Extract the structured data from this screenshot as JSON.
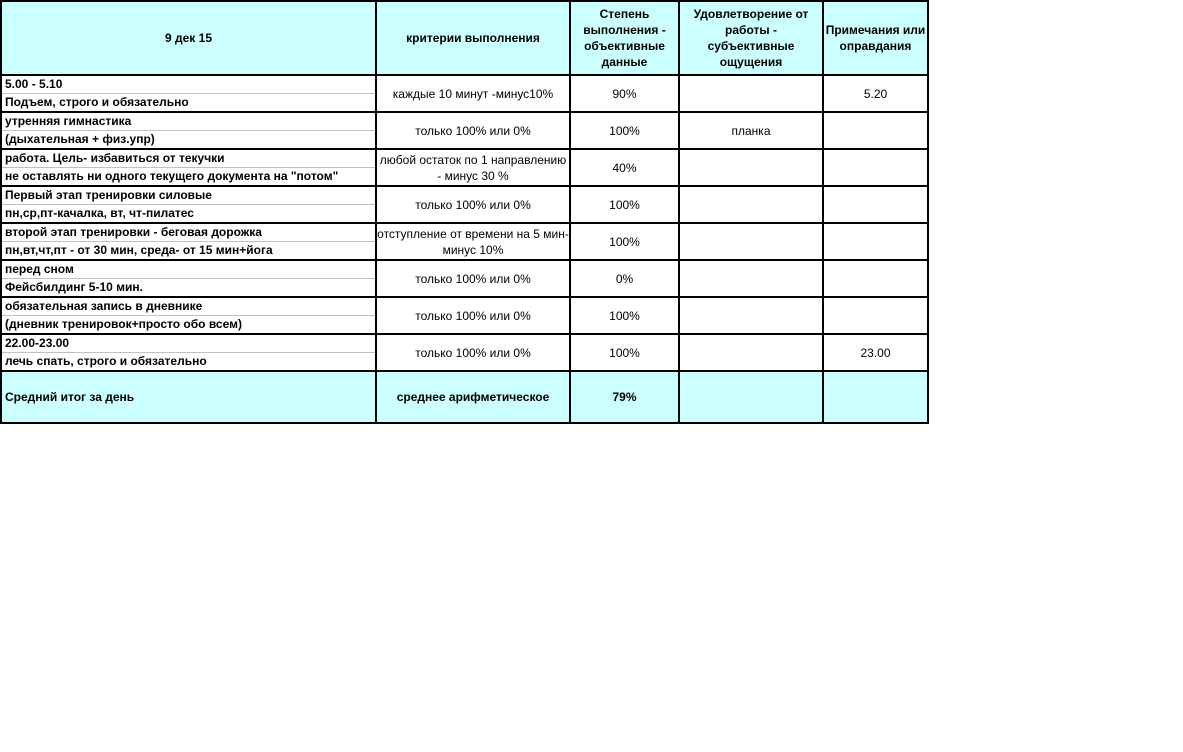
{
  "header": [
    "9 дек 15",
    "критерии выполнения",
    "Степень выполнения - объективные данные",
    "Удовлетворение от работы - субъективные ощущения",
    "Примечания или оправдания"
  ],
  "rows": [
    {
      "line1": "5.00 - 5.10",
      "line2": "Подъем, строго и обязательно",
      "criteria": "каждые 10 минут -минус10%",
      "degree": "90%",
      "satisfaction": "",
      "notes": "5.20"
    },
    {
      "line1": "утренняя гимнастика",
      "line2": "(дыхательная + физ.упр)",
      "criteria": "только 100% или 0%",
      "degree": "100%",
      "satisfaction": "планка",
      "notes": ""
    },
    {
      "line1": "работа. Цель- избавиться от текучки",
      "line2": "не оставлять ни одного текущего документа на \"потом\"",
      "criteria": "любой остаток по 1 направлению - минус 30 %",
      "degree": "40%",
      "satisfaction": "",
      "notes": ""
    },
    {
      "line1": "Первый этап тренировки силовые",
      "line2": "пн,ср,пт-качалка, вт, чт-пилатес",
      "criteria": "только 100% или 0%",
      "degree": "100%",
      "satisfaction": "",
      "notes": ""
    },
    {
      "line1": "второй этап тренировки - беговая дорожка",
      "line2": "пн,вт,чт,пт - от 30 мин, среда- от 15 мин+йога",
      "criteria": "отступление от времени на 5 мин- минус 10%",
      "degree": "100%",
      "satisfaction": "",
      "notes": ""
    },
    {
      "line1": "перед сном",
      "line2": "Фейсбилдинг 5-10 мин.",
      "criteria": "только 100% или 0%",
      "degree": "0%",
      "satisfaction": "",
      "notes": ""
    },
    {
      "line1": "обязательная запись в дневнике",
      "line2": "(дневник тренировок+просто обо всем)",
      "criteria": "только 100% или 0%",
      "degree": "100%",
      "satisfaction": "",
      "notes": ""
    },
    {
      "line1": "22.00-23.00",
      "line2": "лечь спать, строго и обязательно",
      "criteria": "только 100% или 0%",
      "degree": "100%",
      "satisfaction": "",
      "notes": "23.00"
    }
  ],
  "summary": {
    "label": "Средний итог за день",
    "criteria": "среднее арифметическое",
    "degree": "79%",
    "satisfaction": "",
    "notes": ""
  },
  "colors": {
    "header_bg": "#ccffff"
  }
}
